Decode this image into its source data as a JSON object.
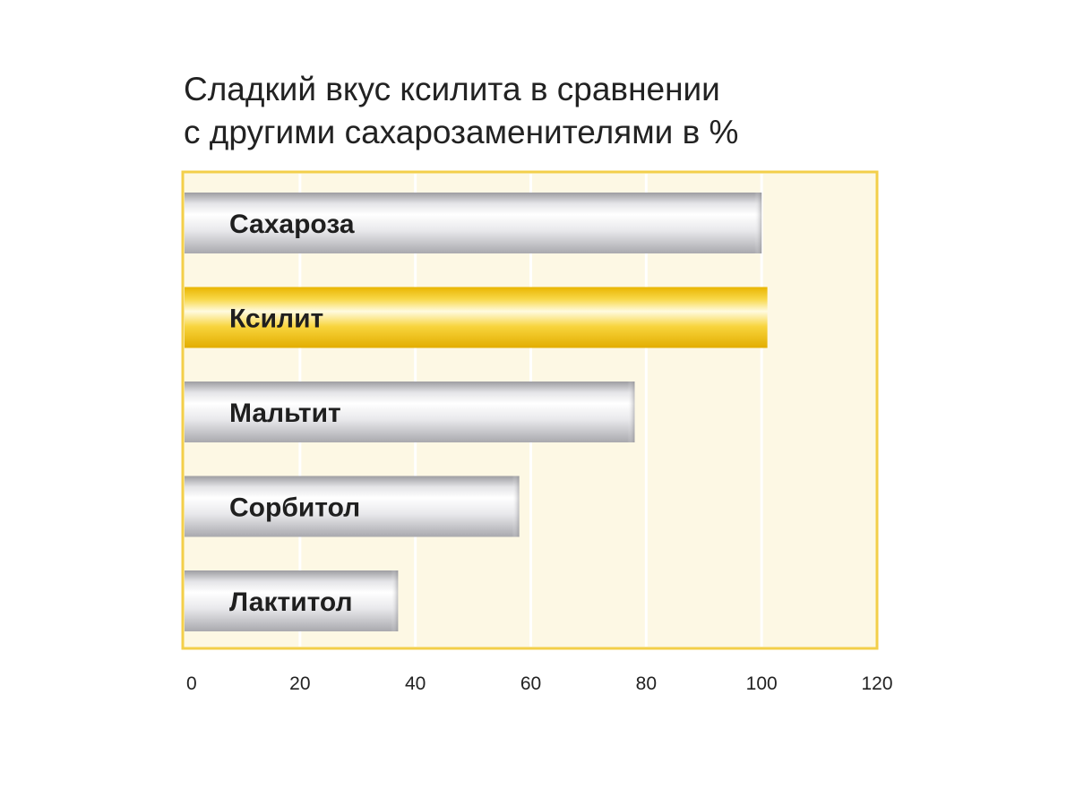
{
  "chart_data": {
    "type": "bar",
    "orientation": "horizontal",
    "title_lines": [
      "Сладкий вкус ксилита в сравнении",
      "с другими сахарозаменителями в %"
    ],
    "categories": [
      "Сахароза",
      "Ксилит",
      "Мальтит",
      "Сорбитол",
      "Лактитол"
    ],
    "values": [
      100,
      101,
      78,
      58,
      37
    ],
    "highlight_category": "Ксилит",
    "xlim": [
      0,
      120
    ],
    "x_ticks": [
      "0",
      "20",
      "40",
      "60",
      "80",
      "100",
      "120"
    ],
    "grid": true,
    "xlabel": "",
    "ylabel": ""
  },
  "colors": {
    "panel_border": "#f3cf4a",
    "panel_fill": "#fdf8e4",
    "grid": "#ffffff",
    "bar_silver": "#c9c9cc",
    "bar_gold": "#f2c414"
  }
}
